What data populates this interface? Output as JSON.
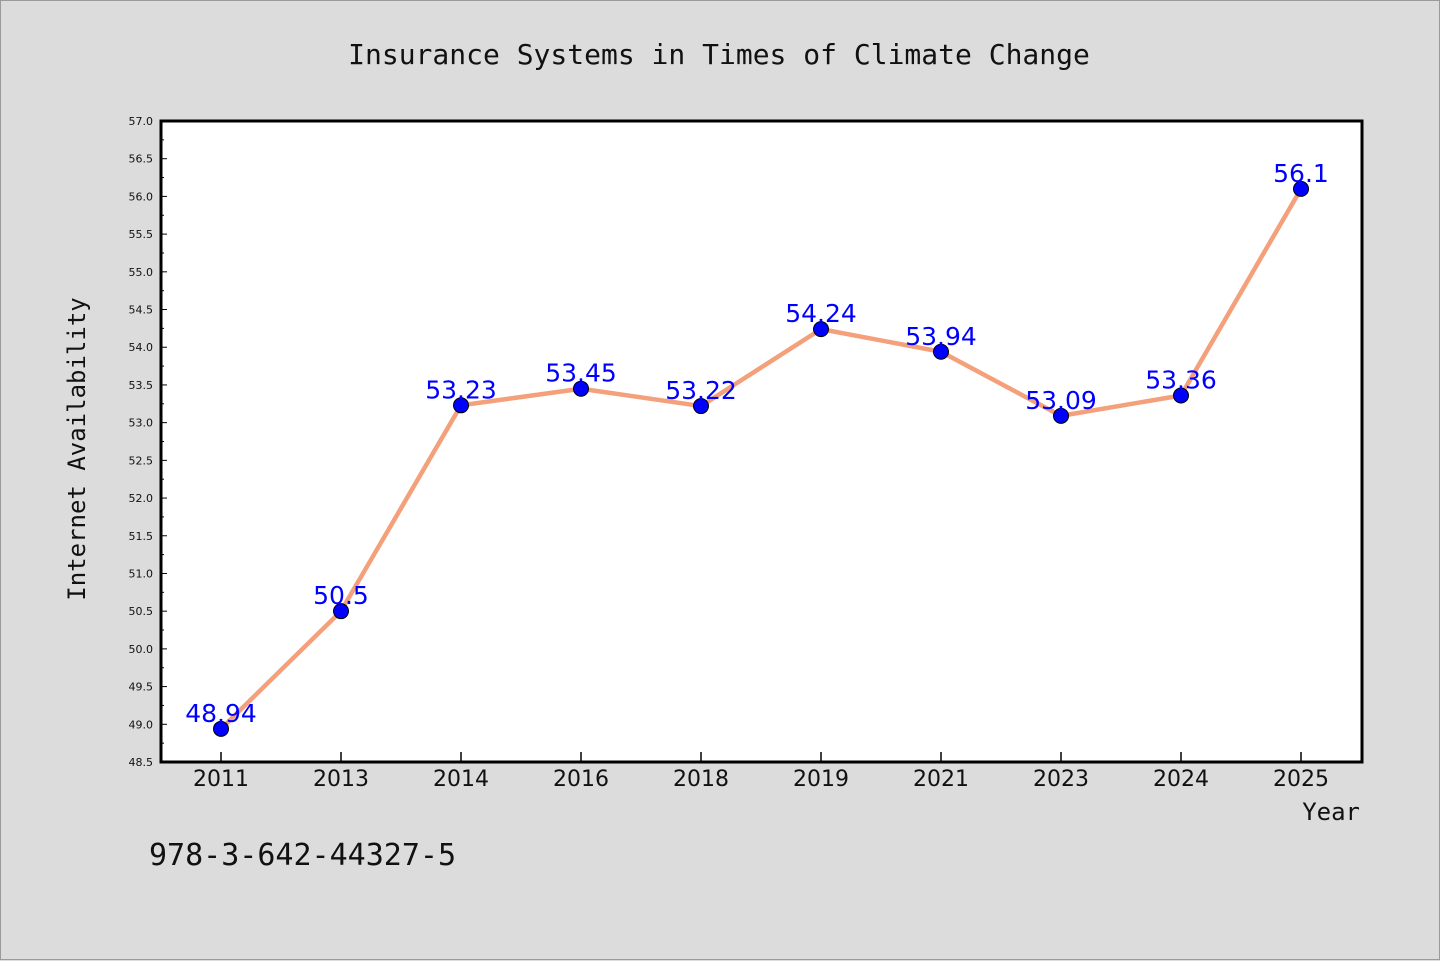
{
  "chart_data": {
    "type": "line",
    "title": "Insurance Systems in Times of Climate Change",
    "xlabel": "Year",
    "ylabel": "Internet Availability",
    "categories": [
      "2011",
      "2013",
      "2014",
      "2016",
      "2018",
      "2019",
      "2021",
      "2023",
      "2024",
      "2025"
    ],
    "series": [
      {
        "values": [
          48.94,
          50.5,
          53.23,
          53.45,
          53.22,
          54.24,
          53.94,
          53.09,
          53.36,
          56.1
        ],
        "labels": [
          "48.94",
          "50.5",
          "53.23",
          "53.45",
          "53.22",
          "54.24",
          "53.94",
          "53.09",
          "53.36",
          "56.1"
        ],
        "line_color": "#f4a07a",
        "marker_color": "#0000ff"
      }
    ],
    "ylim": [
      48.5,
      57.0
    ],
    "yticks": [
      "48.5",
      "49.0",
      "49.5",
      "50.0",
      "50.5",
      "51.0",
      "51.5",
      "52.0",
      "52.5",
      "53.0",
      "53.5",
      "54.0",
      "54.5",
      "55.0",
      "55.5",
      "56.0",
      "56.5",
      "57.0"
    ],
    "grid": false,
    "legend": "none",
    "plot_background": "#ffffff",
    "figure_background": "#dcdcdc",
    "data_label_color": "#0000ff"
  },
  "footer": {
    "isbn": "978-3-642-44327-5"
  }
}
